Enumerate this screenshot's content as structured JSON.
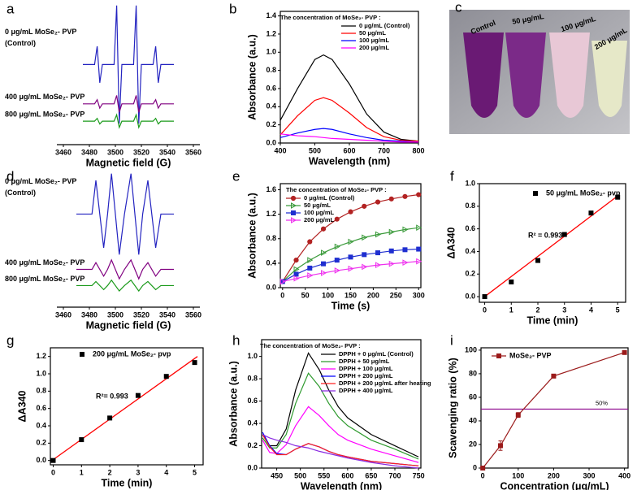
{
  "chart_data": [
    {
      "type": "line",
      "panel": "a",
      "xlabel": "Magnetic field (G)",
      "box": false,
      "x": [
        3475,
        3484,
        3486,
        3488,
        3490,
        3499,
        3501,
        3503,
        3505,
        3514,
        3516,
        3518,
        3520,
        3529,
        3531,
        3533,
        3535,
        3545
      ],
      "xlim": [
        3455,
        3565
      ],
      "xticks": [
        3460,
        3480,
        3500,
        3520,
        3540,
        3560
      ],
      "ylim": [
        0,
        10
      ],
      "series": [
        {
          "name": "0 μg/mL MoSe₂- PVP",
          "sublabel": "(Control)",
          "color": "#2323c0",
          "values": [
            5.7,
            5.7,
            7.0,
            4.4,
            5.7,
            5.7,
            9.9,
            1.5,
            5.7,
            5.7,
            9.9,
            1.5,
            5.7,
            5.7,
            7.0,
            4.4,
            5.7,
            5.7
          ]
        },
        {
          "name": "400 μg/mL MoSe₂- PVP",
          "color": "#800080",
          "values": [
            2.9,
            2.9,
            3.2,
            2.6,
            2.9,
            2.9,
            3.5,
            2.3,
            2.9,
            2.9,
            3.5,
            2.3,
            2.9,
            2.9,
            3.2,
            2.6,
            2.9,
            2.9
          ]
        },
        {
          "name": "800 μg/mL MoSe₂- PVP",
          "color": "#1a9a1a",
          "values": [
            1.67,
            1.67,
            1.87,
            1.47,
            1.67,
            1.67,
            2.12,
            1.22,
            1.67,
            1.67,
            2.12,
            1.22,
            1.67,
            1.67,
            1.87,
            1.47,
            1.67,
            1.67
          ]
        }
      ]
    },
    {
      "type": "line",
      "panel": "b",
      "xlabel": "Wavelength (nm)",
      "ylabel": "Absorbance (a.u.)",
      "box": true,
      "legend": "upper right",
      "legend_title": "The concentration of MoSe₂- PVP :",
      "x": [
        400,
        450,
        500,
        525,
        550,
        600,
        650,
        700,
        750,
        800
      ],
      "xlim": [
        400,
        800
      ],
      "xticks": [
        400,
        500,
        600,
        700,
        800
      ],
      "ylim": [
        0,
        1.45
      ],
      "yticks": [
        {
          "value": 0,
          "label": "0.0"
        },
        {
          "value": 0.2,
          "label": "0.2"
        },
        {
          "value": 0.4,
          "label": "0.4"
        },
        {
          "value": 0.6,
          "label": "0.6"
        },
        {
          "value": 0.8,
          "label": "0.8"
        },
        {
          "value": 1,
          "label": "1.0"
        },
        {
          "value": 1.2,
          "label": "1.2"
        },
        {
          "value": 1.4,
          "label": "1.4"
        }
      ],
      "series": [
        {
          "name": "0 μg/mL (Control)",
          "color": "#000000",
          "values": [
            0.25,
            0.6,
            0.92,
            0.97,
            0.92,
            0.65,
            0.32,
            0.12,
            0.04,
            0.02
          ]
        },
        {
          "name": "50 μg/mL",
          "color": "#ff0000",
          "values": [
            0.09,
            0.3,
            0.47,
            0.5,
            0.47,
            0.33,
            0.17,
            0.07,
            0.03,
            0.02
          ]
        },
        {
          "name": "100 μg/mL",
          "color": "#0000ff",
          "values": [
            0.06,
            0.11,
            0.15,
            0.16,
            0.15,
            0.1,
            0.06,
            0.03,
            0.02,
            0.01
          ]
        },
        {
          "name": "200 μg/mL",
          "color": "#ff00ff",
          "values": [
            0.1,
            0.08,
            0.07,
            0.06,
            0.05,
            0.04,
            0.03,
            0.02,
            0.01,
            0.01
          ]
        }
      ]
    },
    {
      "type": "line",
      "panel": "d",
      "xlabel": "Magnetic field (G)",
      "box": false,
      "x": [
        3470,
        3482,
        3485,
        3491,
        3494,
        3497,
        3503,
        3507,
        3512,
        3518,
        3521,
        3525,
        3531,
        3535,
        3545
      ],
      "xlim": [
        3455,
        3565
      ],
      "xticks": [
        3460,
        3480,
        3500,
        3520,
        3540,
        3560
      ],
      "ylim": [
        0,
        10
      ],
      "series": [
        {
          "name": "0 μg/mL MoSe₂- PVP",
          "sublabel": "(Control)",
          "color": "#2323c0",
          "values": [
            6.9,
            6.9,
            9.4,
            4.4,
            6.9,
            9.9,
            3.9,
            6.9,
            9.9,
            3.9,
            6.9,
            9.4,
            4.4,
            6.9,
            6.9
          ]
        },
        {
          "name": "400 μg/mL MoSe₂- PVP",
          "color": "#800080",
          "values": [
            2.8,
            2.8,
            3.3,
            2.3,
            2.8,
            3.5,
            2.1,
            2.8,
            3.5,
            2.1,
            2.8,
            3.3,
            2.3,
            2.8,
            2.8
          ]
        },
        {
          "name": "800 μg/mL MoSe₂- PVP",
          "color": "#1a9a1a",
          "values": [
            1.6,
            1.6,
            1.9,
            1.3,
            1.6,
            2.0,
            1.2,
            1.6,
            2.0,
            1.2,
            1.6,
            1.9,
            1.3,
            1.6,
            1.6
          ]
        }
      ]
    },
    {
      "type": "line",
      "panel": "e",
      "xlabel": "Time (s)",
      "ylabel": "Absorbance (a.u.)",
      "box": true,
      "legend": "upper left",
      "legend_title": "The concentration of MoSe₂- PVP :",
      "x": [
        0,
        30,
        60,
        90,
        120,
        150,
        180,
        210,
        240,
        270,
        300
      ],
      "xlim": [
        -5,
        305
      ],
      "xticks": [
        0,
        50,
        100,
        150,
        200,
        250,
        300
      ],
      "ylim": [
        0,
        1.7
      ],
      "yticks": [
        {
          "value": 0,
          "label": "0.0"
        },
        {
          "value": 0.4,
          "label": "0.4"
        },
        {
          "value": 0.8,
          "label": "0.8"
        },
        {
          "value": 1.2,
          "label": "1.2"
        },
        {
          "value": 1.6,
          "label": "1.6"
        }
      ],
      "series": [
        {
          "name": "0 μg/mL (Control)",
          "color": "#b22222",
          "marker": "circle",
          "values": [
            0.1,
            0.45,
            0.75,
            0.96,
            1.12,
            1.24,
            1.33,
            1.4,
            1.45,
            1.49,
            1.52
          ]
        },
        {
          "name": "50 μg/mL",
          "color": "#3a9a3a",
          "marker": "triangle",
          "values": [
            0.1,
            0.3,
            0.45,
            0.57,
            0.67,
            0.75,
            0.82,
            0.87,
            0.91,
            0.95,
            0.98
          ]
        },
        {
          "name": "100 μg/mL",
          "color": "#1f2fd0",
          "marker": "square",
          "values": [
            0.1,
            0.22,
            0.32,
            0.39,
            0.45,
            0.5,
            0.54,
            0.57,
            0.6,
            0.62,
            0.63
          ]
        },
        {
          "name": "200 μg/mL",
          "color": "#ee30ee",
          "marker": "triangle",
          "values": [
            0.1,
            0.15,
            0.2,
            0.24,
            0.28,
            0.31,
            0.34,
            0.37,
            0.39,
            0.41,
            0.43
          ]
        }
      ]
    },
    {
      "type": "scatter",
      "panel": "f",
      "xlabel": "Time (min)",
      "ylabel": "ΔA340",
      "box": true,
      "legend": "upper left",
      "annotation": "R² = 0.993",
      "x": [
        0,
        1,
        2,
        3,
        4,
        5
      ],
      "xlim": [
        -0.2,
        5.3
      ],
      "xticks": [
        0,
        1,
        2,
        3,
        4,
        5
      ],
      "ylim": [
        -0.05,
        1.0
      ],
      "yticks": [
        {
          "value": 0,
          "label": "0.0"
        },
        {
          "value": 0.2,
          "label": "0.2"
        },
        {
          "value": 0.4,
          "label": "0.4"
        },
        {
          "value": 0.6,
          "label": "0.6"
        },
        {
          "value": 0.8,
          "label": "0.8"
        },
        {
          "value": 1,
          "label": "1.0"
        }
      ],
      "series": [
        {
          "name": "50 μg/mL MoSe₂- pvp",
          "color": "#000000",
          "marker": "square",
          "values": [
            0,
            0.13,
            0.32,
            0.55,
            0.74,
            0.88
          ]
        }
      ],
      "fit": {
        "color": "#ff0000",
        "x": [
          0,
          5.05
        ],
        "values": [
          0,
          0.9
        ]
      }
    },
    {
      "type": "scatter",
      "panel": "g",
      "xlabel": "Time (min)",
      "ylabel": "ΔA340",
      "box": true,
      "legend": "upper left",
      "annotation": "R²= 0.993",
      "x": [
        0,
        1,
        2,
        3,
        4,
        5
      ],
      "xlim": [
        -0.1,
        5.3
      ],
      "xticks": [
        0,
        1,
        2,
        3,
        4,
        5
      ],
      "ylim": [
        -0.05,
        1.3
      ],
      "yticks": [
        {
          "value": 0,
          "label": "0.0"
        },
        {
          "value": 0.2,
          "label": "0.2"
        },
        {
          "value": 0.4,
          "label": "0.4"
        },
        {
          "value": 0.6,
          "label": "0.6"
        },
        {
          "value": 0.8,
          "label": "0.8"
        },
        {
          "value": 1,
          "label": "1.0"
        },
        {
          "value": 1.2,
          "label": "1.2"
        }
      ],
      "series": [
        {
          "name": "200 μg/mL MoSe₂- pvp",
          "color": "#000000",
          "marker": "square",
          "values": [
            0,
            0.24,
            0.49,
            0.75,
            0.97,
            1.13
          ]
        }
      ],
      "fit": {
        "color": "#ff0000",
        "x": [
          0,
          5.1
        ],
        "values": [
          0.01,
          1.2
        ]
      }
    },
    {
      "type": "line",
      "panel": "h",
      "xlabel": "Wavelength (nm)",
      "ylabel": "Absorbance (a.u.)",
      "box": true,
      "legend": "upper right",
      "legend_title": "The concentration of MoSe₂- PVP :",
      "x": [
        420,
        435,
        450,
        470,
        490,
        517,
        540,
        560,
        580,
        600,
        650,
        700,
        750
      ],
      "xlim": [
        418,
        755
      ],
      "xticks": [
        450,
        500,
        550,
        600,
        650,
        700,
        750
      ],
      "ylim": [
        0,
        1.15
      ],
      "yticks": [
        {
          "value": 0,
          "label": "0.0"
        },
        {
          "value": 0.2,
          "label": "0.2"
        },
        {
          "value": 0.4,
          "label": "0.4"
        },
        {
          "value": 0.6,
          "label": "0.6"
        },
        {
          "value": 0.8,
          "label": "0.8"
        },
        {
          "value": 1,
          "label": "1.0"
        }
      ],
      "series": [
        {
          "name": "DPPH + 0 μg/mL (Control)",
          "color": "#000000",
          "values": [
            0.3,
            0.2,
            0.2,
            0.35,
            0.7,
            1.03,
            0.88,
            0.7,
            0.55,
            0.45,
            0.3,
            0.2,
            0.1
          ]
        },
        {
          "name": "DPPH + 50 μg/mL",
          "color": "#2e9a2e",
          "values": [
            0.27,
            0.18,
            0.18,
            0.3,
            0.58,
            0.85,
            0.73,
            0.58,
            0.46,
            0.38,
            0.25,
            0.17,
            0.08
          ]
        },
        {
          "name": "DPPH + 100 μg/mL",
          "color": "#ff00ff",
          "values": [
            0.25,
            0.14,
            0.13,
            0.21,
            0.38,
            0.55,
            0.47,
            0.38,
            0.3,
            0.25,
            0.17,
            0.11,
            0.05
          ]
        },
        {
          "name": "DPPH + 200 μg/mL",
          "color": "#0000ff",
          "values": [
            0.32,
            0.2,
            0.13,
            0.12,
            0.17,
            0.22,
            0.19,
            0.15,
            0.12,
            0.1,
            0.06,
            0.04,
            0.02
          ]
        },
        {
          "name": "DPPH + 200 μg/mL after heating",
          "color": "#ff2020",
          "values": [
            0.3,
            0.19,
            0.12,
            0.12,
            0.17,
            0.22,
            0.19,
            0.15,
            0.12,
            0.1,
            0.06,
            0.04,
            0.02
          ]
        },
        {
          "name": "DPPH + 400 μg/mL",
          "color": "#8a2be2",
          "values": [
            0.3,
            0.27,
            0.25,
            0.23,
            0.2,
            0.18,
            0.15,
            0.13,
            0.11,
            0.09,
            0.05,
            0.02,
            0
          ]
        }
      ]
    },
    {
      "type": "line",
      "panel": "i",
      "xlabel": "Concentration (μg/mL)",
      "ylabel": "Scavenging ratio (%)",
      "box": true,
      "legend": "upper left",
      "x": [
        0,
        50,
        100,
        200,
        400
      ],
      "xlim": [
        -5,
        410
      ],
      "xticks": [
        0,
        100,
        200,
        300,
        400
      ],
      "ylim": [
        0,
        102
      ],
      "yticks": [
        0,
        20,
        40,
        60,
        80,
        100
      ],
      "series": [
        {
          "name": "MoSe₂- PVP",
          "color": "#9b1b1b",
          "marker": "square",
          "values": [
            0,
            19,
            45,
            78,
            98
          ],
          "errors": [
            0,
            4,
            2,
            0,
            0
          ]
        }
      ],
      "hline": {
        "value": 50,
        "label": "50%",
        "color": "#8b008b"
      }
    }
  ],
  "photo": {
    "panel": "c",
    "labels": [
      "Control",
      "50 μg/mL",
      "100 μg/mL",
      "200 μg/mL"
    ]
  }
}
